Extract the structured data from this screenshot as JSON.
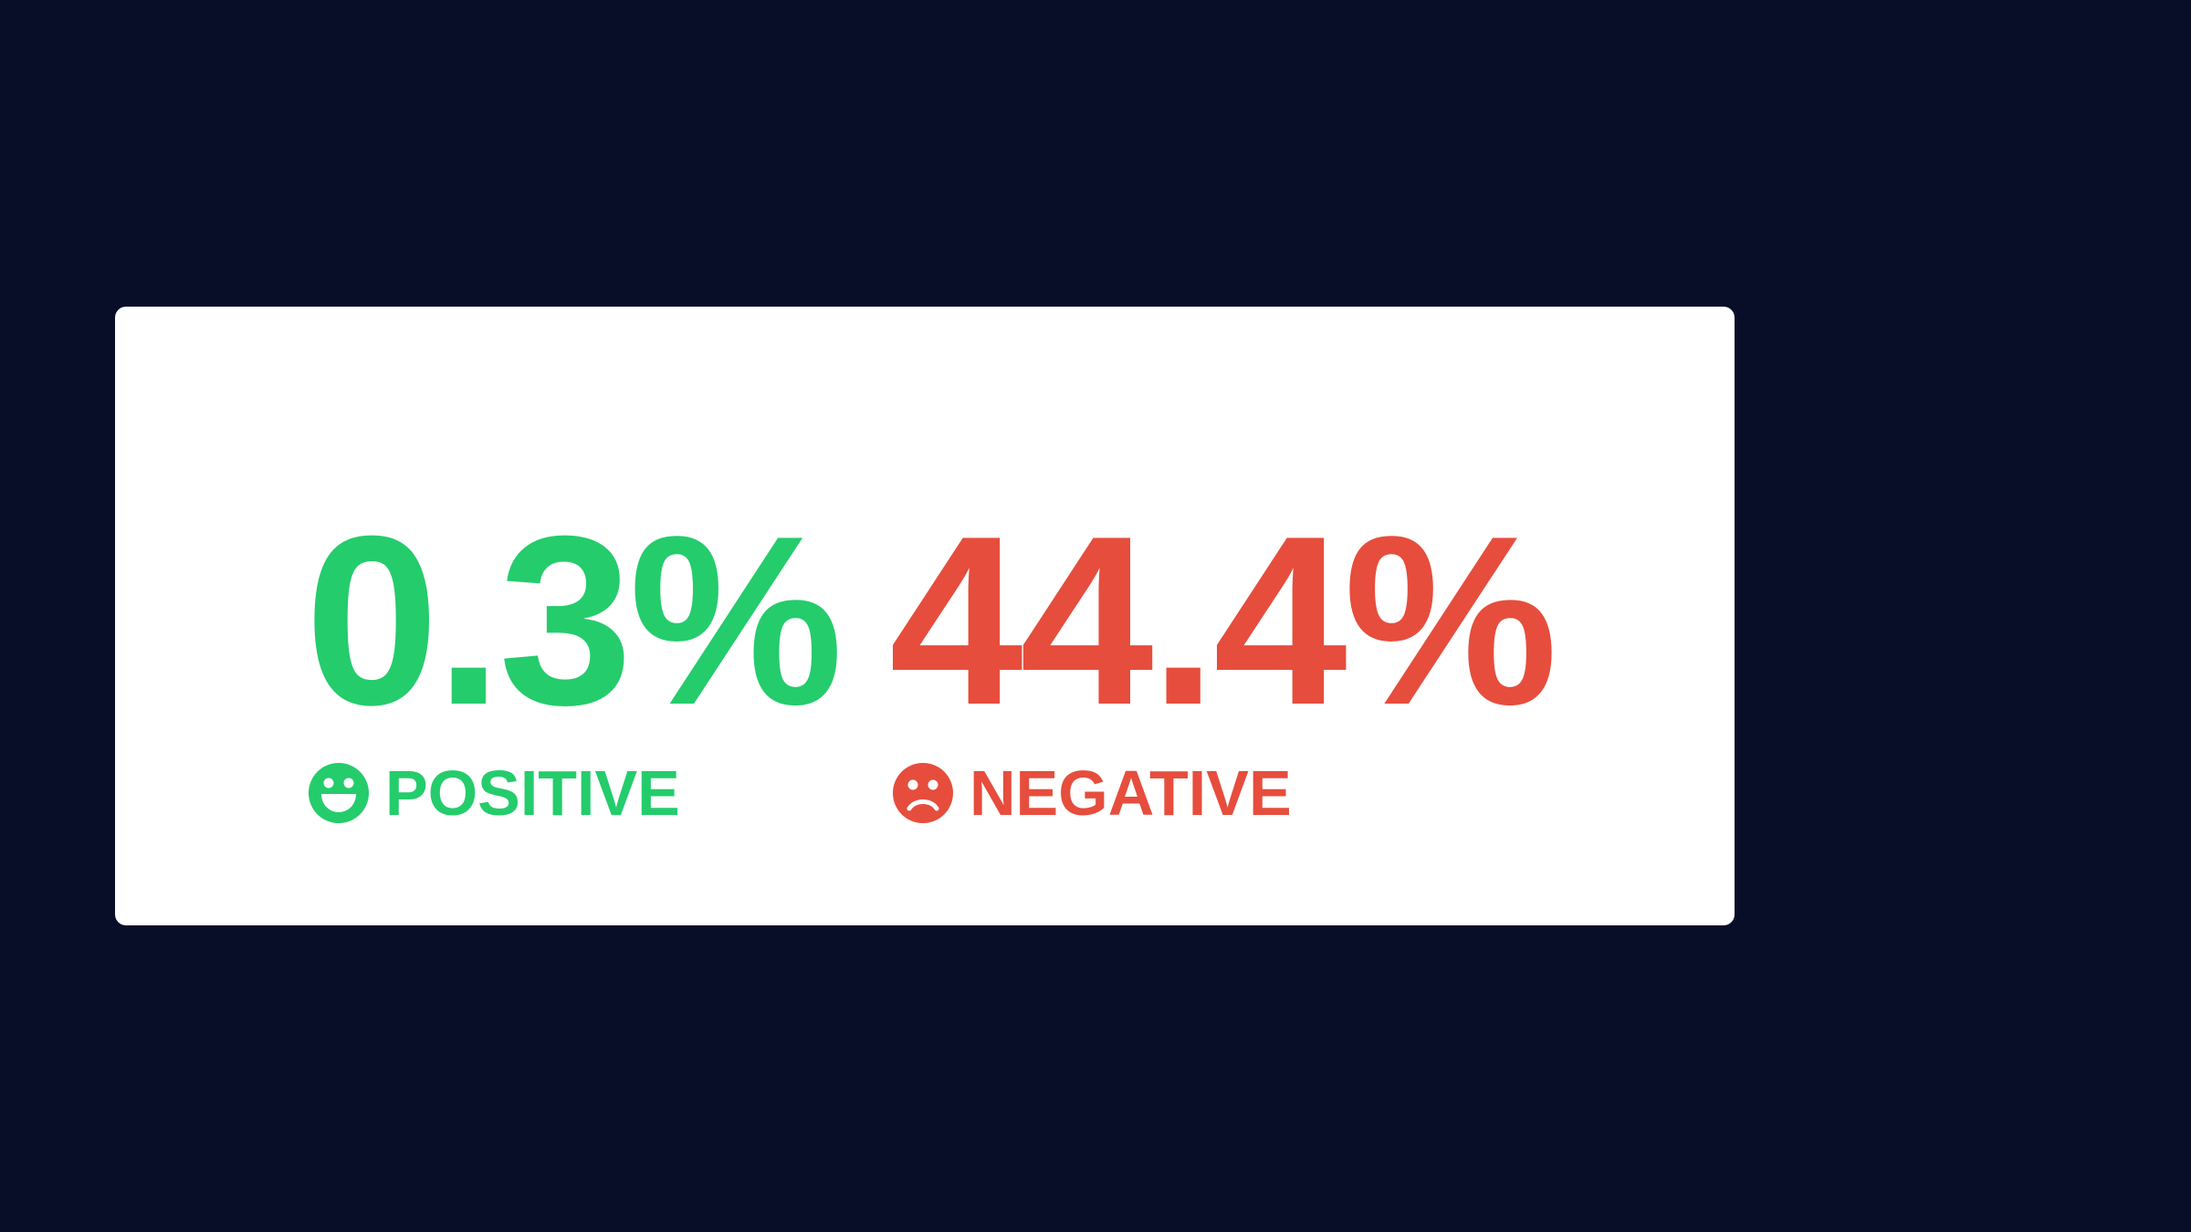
{
  "background_color": "#080d28",
  "card_color": "#ffffff",
  "positive": {
    "value": "0.3%",
    "label": "POSITIVE",
    "icon": "grinning-face-icon",
    "color": "#24cc6c"
  },
  "negative": {
    "value": "44.4%",
    "label": "NEGATIVE",
    "icon": "frowning-face-icon",
    "color": "#e64d3d"
  }
}
